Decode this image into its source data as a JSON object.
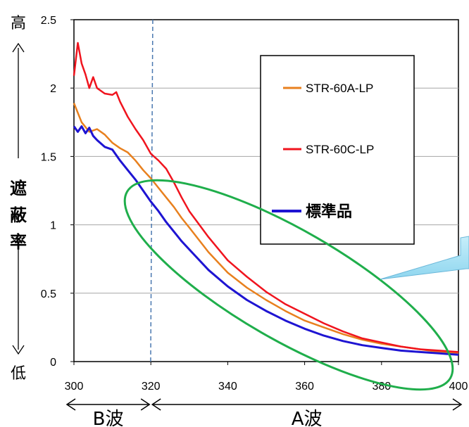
{
  "chart_data": {
    "type": "line",
    "title": "",
    "xlabel": "",
    "ylabel": "遮蔽率",
    "y_high_label": "高",
    "y_low_label": "低",
    "xlim": [
      300,
      400
    ],
    "ylim": [
      0,
      2.5
    ],
    "x_ticks": [
      "300",
      "320",
      "340",
      "360",
      "380",
      "400"
    ],
    "y_ticks": [
      "0",
      "0.5",
      "1",
      "1.5",
      "2",
      "2.5"
    ],
    "grid": "horizontal",
    "legend_position": "top-right",
    "reference_line_x": 320.5,
    "bands": [
      {
        "label": "B波",
        "from": 300,
        "to": 320
      },
      {
        "label": "A波",
        "from": 320,
        "to": 400
      }
    ],
    "series": [
      {
        "name": "STR-60A-LP",
        "color": "#e8801e",
        "x": [
          300,
          302,
          304,
          306,
          308,
          310,
          312,
          314,
          316,
          318,
          320,
          322,
          324,
          326,
          328,
          330,
          335,
          340,
          345,
          350,
          355,
          360,
          365,
          370,
          375,
          380,
          385,
          390,
          395,
          400
        ],
        "y": [
          1.89,
          1.75,
          1.68,
          1.7,
          1.66,
          1.6,
          1.56,
          1.53,
          1.47,
          1.4,
          1.34,
          1.27,
          1.2,
          1.13,
          1.05,
          0.98,
          0.8,
          0.65,
          0.54,
          0.45,
          0.37,
          0.3,
          0.25,
          0.2,
          0.16,
          0.13,
          0.11,
          0.09,
          0.07,
          0.06
        ]
      },
      {
        "name": "STR-60C-LP",
        "color": "#f0141e",
        "x": [
          300,
          301,
          302,
          303,
          304,
          305,
          306,
          308,
          310,
          311,
          312,
          314,
          316,
          318,
          320,
          322,
          324,
          326,
          328,
          330,
          335,
          340,
          345,
          350,
          355,
          360,
          365,
          370,
          375,
          380,
          385,
          390,
          395,
          400
        ],
        "y": [
          2.09,
          2.33,
          2.18,
          2.1,
          2.0,
          2.08,
          2.0,
          1.96,
          1.95,
          1.97,
          1.9,
          1.79,
          1.7,
          1.62,
          1.52,
          1.47,
          1.41,
          1.31,
          1.2,
          1.1,
          0.91,
          0.74,
          0.62,
          0.51,
          0.42,
          0.35,
          0.28,
          0.22,
          0.17,
          0.14,
          0.11,
          0.09,
          0.08,
          0.07
        ]
      },
      {
        "name": "標準品",
        "color": "#1e14d2",
        "x": [
          300,
          301,
          302,
          303,
          304,
          305,
          306,
          308,
          310,
          312,
          314,
          316,
          318,
          320,
          322,
          324,
          326,
          328,
          330,
          335,
          340,
          345,
          350,
          355,
          360,
          365,
          370,
          375,
          380,
          385,
          390,
          395,
          400
        ],
        "y": [
          1.72,
          1.68,
          1.72,
          1.67,
          1.71,
          1.65,
          1.62,
          1.57,
          1.55,
          1.47,
          1.4,
          1.33,
          1.25,
          1.17,
          1.1,
          1.02,
          0.95,
          0.88,
          0.82,
          0.67,
          0.55,
          0.45,
          0.37,
          0.3,
          0.24,
          0.19,
          0.15,
          0.12,
          0.1,
          0.08,
          0.07,
          0.06,
          0.05
        ]
      }
    ]
  }
}
